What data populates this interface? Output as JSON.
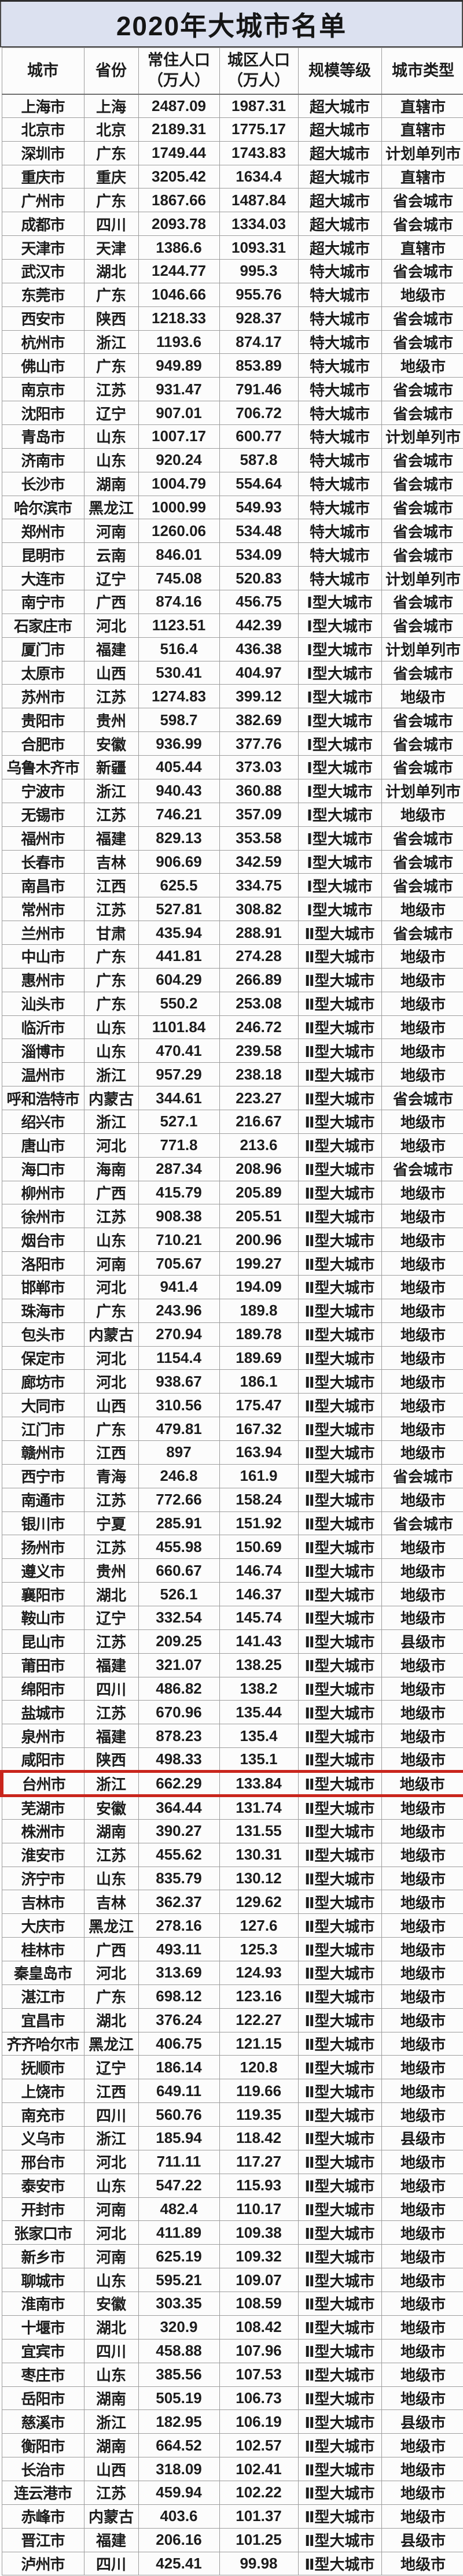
{
  "title": "2020年大城市名单",
  "columns": [
    "城市",
    "省份",
    "常住人口\n（万人）",
    "城区人口\n（万人）",
    "规模等级",
    "城市类型"
  ],
  "column_keys": [
    "city",
    "province",
    "resident_population_wan",
    "urban_population_wan",
    "scale_level",
    "city_type"
  ],
  "colors": {
    "title_bg": "#dce1f0",
    "highlight_border": "#c9251c",
    "grid_line": "#9d9d9d",
    "text": "#1c1c1c"
  },
  "highlight": {
    "city": "台州市",
    "row_index": 71
  },
  "rows": [
    [
      "上海市",
      "上海",
      "2487.09",
      "1987.31",
      "超大城市",
      "直辖市"
    ],
    [
      "北京市",
      "北京",
      "2189.31",
      "1775.17",
      "超大城市",
      "直辖市"
    ],
    [
      "深圳市",
      "广东",
      "1749.44",
      "1743.83",
      "超大城市",
      "计划单列市"
    ],
    [
      "重庆市",
      "重庆",
      "3205.42",
      "1634.4",
      "超大城市",
      "直辖市"
    ],
    [
      "广州市",
      "广东",
      "1867.66",
      "1487.84",
      "超大城市",
      "省会城市"
    ],
    [
      "成都市",
      "四川",
      "2093.78",
      "1334.03",
      "超大城市",
      "省会城市"
    ],
    [
      "天津市",
      "天津",
      "1386.6",
      "1093.31",
      "超大城市",
      "直辖市"
    ],
    [
      "武汉市",
      "湖北",
      "1244.77",
      "995.3",
      "特大城市",
      "省会城市"
    ],
    [
      "东莞市",
      "广东",
      "1046.66",
      "955.76",
      "特大城市",
      "地级市"
    ],
    [
      "西安市",
      "陕西",
      "1218.33",
      "928.37",
      "特大城市",
      "省会城市"
    ],
    [
      "杭州市",
      "浙江",
      "1193.6",
      "874.17",
      "特大城市",
      "省会城市"
    ],
    [
      "佛山市",
      "广东",
      "949.89",
      "853.89",
      "特大城市",
      "地级市"
    ],
    [
      "南京市",
      "江苏",
      "931.47",
      "791.46",
      "特大城市",
      "省会城市"
    ],
    [
      "沈阳市",
      "辽宁",
      "907.01",
      "706.72",
      "特大城市",
      "省会城市"
    ],
    [
      "青岛市",
      "山东",
      "1007.17",
      "600.77",
      "特大城市",
      "计划单列市"
    ],
    [
      "济南市",
      "山东",
      "920.24",
      "587.8",
      "特大城市",
      "省会城市"
    ],
    [
      "长沙市",
      "湖南",
      "1004.79",
      "554.64",
      "特大城市",
      "省会城市"
    ],
    [
      "哈尔滨市",
      "黑龙江",
      "1000.99",
      "549.93",
      "特大城市",
      "省会城市"
    ],
    [
      "郑州市",
      "河南",
      "1260.06",
      "534.48",
      "特大城市",
      "省会城市"
    ],
    [
      "昆明市",
      "云南",
      "846.01",
      "534.09",
      "特大城市",
      "省会城市"
    ],
    [
      "大连市",
      "辽宁",
      "745.08",
      "520.83",
      "特大城市",
      "计划单列市"
    ],
    [
      "南宁市",
      "广西",
      "874.16",
      "456.75",
      "Ⅰ型大城市",
      "省会城市"
    ],
    [
      "石家庄市",
      "河北",
      "1123.51",
      "442.39",
      "Ⅰ型大城市",
      "省会城市"
    ],
    [
      "厦门市",
      "福建",
      "516.4",
      "436.38",
      "Ⅰ型大城市",
      "计划单列市"
    ],
    [
      "太原市",
      "山西",
      "530.41",
      "404.97",
      "Ⅰ型大城市",
      "省会城市"
    ],
    [
      "苏州市",
      "江苏",
      "1274.83",
      "399.12",
      "Ⅰ型大城市",
      "地级市"
    ],
    [
      "贵阳市",
      "贵州",
      "598.7",
      "382.69",
      "Ⅰ型大城市",
      "省会城市"
    ],
    [
      "合肥市",
      "安徽",
      "936.99",
      "377.76",
      "Ⅰ型大城市",
      "省会城市"
    ],
    [
      "乌鲁木齐市",
      "新疆",
      "405.44",
      "373.03",
      "Ⅰ型大城市",
      "省会城市"
    ],
    [
      "宁波市",
      "浙江",
      "940.43",
      "360.88",
      "Ⅰ型大城市",
      "计划单列市"
    ],
    [
      "无锡市",
      "江苏",
      "746.21",
      "357.09",
      "Ⅰ型大城市",
      "地级市"
    ],
    [
      "福州市",
      "福建",
      "829.13",
      "353.58",
      "Ⅰ型大城市",
      "省会城市"
    ],
    [
      "长春市",
      "吉林",
      "906.69",
      "342.59",
      "Ⅰ型大城市",
      "省会城市"
    ],
    [
      "南昌市",
      "江西",
      "625.5",
      "334.75",
      "Ⅰ型大城市",
      "省会城市"
    ],
    [
      "常州市",
      "江苏",
      "527.81",
      "308.82",
      "Ⅰ型大城市",
      "地级市"
    ],
    [
      "兰州市",
      "甘肃",
      "435.94",
      "288.91",
      "Ⅱ型大城市",
      "省会城市"
    ],
    [
      "中山市",
      "广东",
      "441.81",
      "274.28",
      "Ⅱ型大城市",
      "地级市"
    ],
    [
      "惠州市",
      "广东",
      "604.29",
      "266.89",
      "Ⅱ型大城市",
      "地级市"
    ],
    [
      "汕头市",
      "广东",
      "550.2",
      "253.08",
      "Ⅱ型大城市",
      "地级市"
    ],
    [
      "临沂市",
      "山东",
      "1101.84",
      "246.72",
      "Ⅱ型大城市",
      "地级市"
    ],
    [
      "淄博市",
      "山东",
      "470.41",
      "239.58",
      "Ⅱ型大城市",
      "地级市"
    ],
    [
      "温州市",
      "浙江",
      "957.29",
      "238.18",
      "Ⅱ型大城市",
      "地级市"
    ],
    [
      "呼和浩特市",
      "内蒙古",
      "344.61",
      "223.27",
      "Ⅱ型大城市",
      "省会城市"
    ],
    [
      "绍兴市",
      "浙江",
      "527.1",
      "216.67",
      "Ⅱ型大城市",
      "地级市"
    ],
    [
      "唐山市",
      "河北",
      "771.8",
      "213.6",
      "Ⅱ型大城市",
      "地级市"
    ],
    [
      "海口市",
      "海南",
      "287.34",
      "208.96",
      "Ⅱ型大城市",
      "省会城市"
    ],
    [
      "柳州市",
      "广西",
      "415.79",
      "205.89",
      "Ⅱ型大城市",
      "地级市"
    ],
    [
      "徐州市",
      "江苏",
      "908.38",
      "205.51",
      "Ⅱ型大城市",
      "地级市"
    ],
    [
      "烟台市",
      "山东",
      "710.21",
      "200.96",
      "Ⅱ型大城市",
      "地级市"
    ],
    [
      "洛阳市",
      "河南",
      "705.67",
      "199.27",
      "Ⅱ型大城市",
      "地级市"
    ],
    [
      "邯郸市",
      "河北",
      "941.4",
      "194.09",
      "Ⅱ型大城市",
      "地级市"
    ],
    [
      "珠海市",
      "广东",
      "243.96",
      "189.8",
      "Ⅱ型大城市",
      "地级市"
    ],
    [
      "包头市",
      "内蒙古",
      "270.94",
      "189.78",
      "Ⅱ型大城市",
      "地级市"
    ],
    [
      "保定市",
      "河北",
      "1154.4",
      "189.69",
      "Ⅱ型大城市",
      "地级市"
    ],
    [
      "廊坊市",
      "河北",
      "938.67",
      "186.1",
      "Ⅱ型大城市",
      "地级市"
    ],
    [
      "大同市",
      "山西",
      "310.56",
      "175.47",
      "Ⅱ型大城市",
      "地级市"
    ],
    [
      "江门市",
      "广东",
      "479.81",
      "167.32",
      "Ⅱ型大城市",
      "地级市"
    ],
    [
      "赣州市",
      "江西",
      "897",
      "163.94",
      "Ⅱ型大城市",
      "地级市"
    ],
    [
      "西宁市",
      "青海",
      "246.8",
      "161.9",
      "Ⅱ型大城市",
      "省会城市"
    ],
    [
      "南通市",
      "江苏",
      "772.66",
      "158.24",
      "Ⅱ型大城市",
      "地级市"
    ],
    [
      "银川市",
      "宁夏",
      "285.91",
      "151.92",
      "Ⅱ型大城市",
      "省会城市"
    ],
    [
      "扬州市",
      "江苏",
      "455.98",
      "150.69",
      "Ⅱ型大城市",
      "地级市"
    ],
    [
      "遵义市",
      "贵州",
      "660.67",
      "146.74",
      "Ⅱ型大城市",
      "地级市"
    ],
    [
      "襄阳市",
      "湖北",
      "526.1",
      "146.37",
      "Ⅱ型大城市",
      "地级市"
    ],
    [
      "鞍山市",
      "辽宁",
      "332.54",
      "145.74",
      "Ⅱ型大城市",
      "地级市"
    ],
    [
      "昆山市",
      "江苏",
      "209.25",
      "141.43",
      "Ⅱ型大城市",
      "县级市"
    ],
    [
      "莆田市",
      "福建",
      "321.07",
      "138.25",
      "Ⅱ型大城市",
      "地级市"
    ],
    [
      "绵阳市",
      "四川",
      "486.82",
      "138.2",
      "Ⅱ型大城市",
      "地级市"
    ],
    [
      "盐城市",
      "江苏",
      "670.96",
      "135.44",
      "Ⅱ型大城市",
      "地级市"
    ],
    [
      "泉州市",
      "福建",
      "878.23",
      "135.4",
      "Ⅱ型大城市",
      "地级市"
    ],
    [
      "咸阳市",
      "陕西",
      "498.33",
      "135.1",
      "Ⅱ型大城市",
      "地级市"
    ],
    [
      "台州市",
      "浙江",
      "662.29",
      "133.84",
      "Ⅱ型大城市",
      "地级市"
    ],
    [
      "芜湖市",
      "安徽",
      "364.44",
      "131.74",
      "Ⅱ型大城市",
      "地级市"
    ],
    [
      "株洲市",
      "湖南",
      "390.27",
      "131.55",
      "Ⅱ型大城市",
      "地级市"
    ],
    [
      "淮安市",
      "江苏",
      "455.62",
      "130.31",
      "Ⅱ型大城市",
      "地级市"
    ],
    [
      "济宁市",
      "山东",
      "835.79",
      "130.12",
      "Ⅱ型大城市",
      "地级市"
    ],
    [
      "吉林市",
      "吉林",
      "362.37",
      "129.62",
      "Ⅱ型大城市",
      "地级市"
    ],
    [
      "大庆市",
      "黑龙江",
      "278.16",
      "127.6",
      "Ⅱ型大城市",
      "地级市"
    ],
    [
      "桂林市",
      "广西",
      "493.11",
      "125.3",
      "Ⅱ型大城市",
      "地级市"
    ],
    [
      "秦皇岛市",
      "河北",
      "313.69",
      "124.93",
      "Ⅱ型大城市",
      "地级市"
    ],
    [
      "湛江市",
      "广东",
      "698.12",
      "123.16",
      "Ⅱ型大城市",
      "地级市"
    ],
    [
      "宜昌市",
      "湖北",
      "376.24",
      "122.27",
      "Ⅱ型大城市",
      "地级市"
    ],
    [
      "齐齐哈尔市",
      "黑龙江",
      "406.75",
      "121.15",
      "Ⅱ型大城市",
      "地级市"
    ],
    [
      "抚顺市",
      "辽宁",
      "186.14",
      "120.8",
      "Ⅱ型大城市",
      "地级市"
    ],
    [
      "上饶市",
      "江西",
      "649.11",
      "119.66",
      "Ⅱ型大城市",
      "地级市"
    ],
    [
      "南充市",
      "四川",
      "560.76",
      "119.35",
      "Ⅱ型大城市",
      "地级市"
    ],
    [
      "义乌市",
      "浙江",
      "185.94",
      "118.42",
      "Ⅱ型大城市",
      "县级市"
    ],
    [
      "邢台市",
      "河北",
      "711.11",
      "117.27",
      "Ⅱ型大城市",
      "地级市"
    ],
    [
      "泰安市",
      "山东",
      "547.22",
      "115.93",
      "Ⅱ型大城市",
      "地级市"
    ],
    [
      "开封市",
      "河南",
      "482.4",
      "110.17",
      "Ⅱ型大城市",
      "地级市"
    ],
    [
      "张家口市",
      "河北",
      "411.89",
      "109.38",
      "Ⅱ型大城市",
      "地级市"
    ],
    [
      "新乡市",
      "河南",
      "625.19",
      "109.32",
      "Ⅱ型大城市",
      "地级市"
    ],
    [
      "聊城市",
      "山东",
      "595.21",
      "109.07",
      "Ⅱ型大城市",
      "地级市"
    ],
    [
      "淮南市",
      "安徽",
      "303.35",
      "108.59",
      "Ⅱ型大城市",
      "地级市"
    ],
    [
      "十堰市",
      "湖北",
      "320.9",
      "108.42",
      "Ⅱ型大城市",
      "地级市"
    ],
    [
      "宜宾市",
      "四川",
      "458.88",
      "107.96",
      "Ⅱ型大城市",
      "地级市"
    ],
    [
      "枣庄市",
      "山东",
      "385.56",
      "107.53",
      "Ⅱ型大城市",
      "地级市"
    ],
    [
      "岳阳市",
      "湖南",
      "505.19",
      "106.73",
      "Ⅱ型大城市",
      "地级市"
    ],
    [
      "慈溪市",
      "浙江",
      "182.95",
      "106.19",
      "Ⅱ型大城市",
      "县级市"
    ],
    [
      "衡阳市",
      "湖南",
      "664.52",
      "102.57",
      "Ⅱ型大城市",
      "地级市"
    ],
    [
      "长治市",
      "山西",
      "318.09",
      "102.41",
      "Ⅱ型大城市",
      "地级市"
    ],
    [
      "连云港市",
      "江苏",
      "459.94",
      "102.22",
      "Ⅱ型大城市",
      "地级市"
    ],
    [
      "赤峰市",
      "内蒙古",
      "403.6",
      "101.37",
      "Ⅱ型大城市",
      "地级市"
    ],
    [
      "晋江市",
      "福建",
      "206.16",
      "101.25",
      "Ⅱ型大城市",
      "县级市"
    ],
    [
      "泸州市",
      "四川",
      "425.41",
      "99.98",
      "Ⅱ型大城市",
      "地级市"
    ]
  ]
}
